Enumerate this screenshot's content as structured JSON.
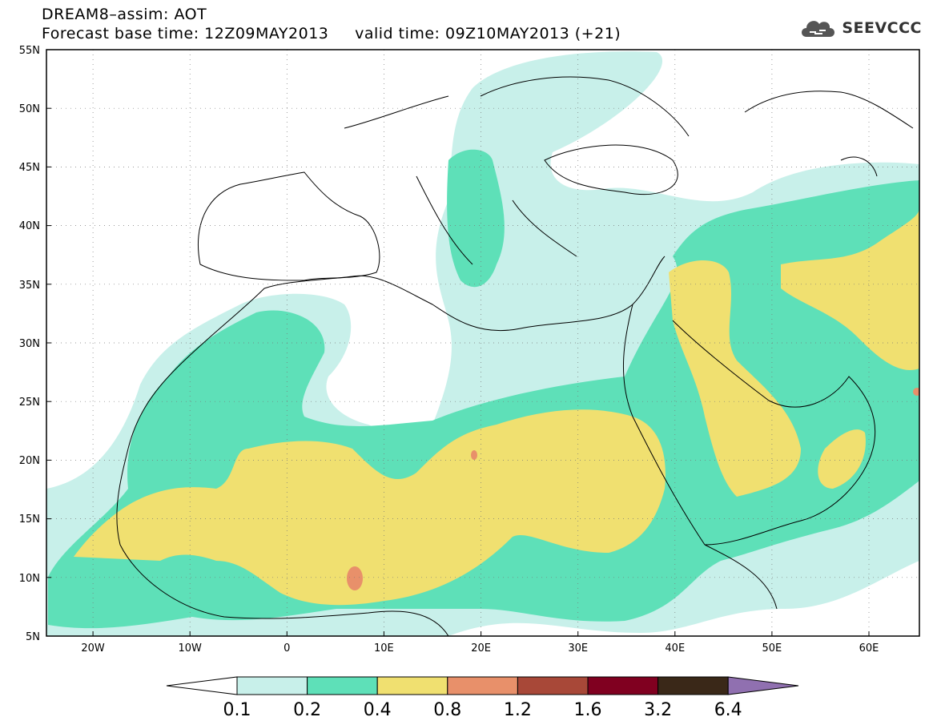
{
  "title": {
    "line1": "DREAM8–assim: AOT",
    "line2": "Forecast base time: 12Z09MAY2013     valid time: 09Z10MAY2013 (+21)"
  },
  "logo": {
    "text": "SEEVCCC",
    "icon": "cloud-icon"
  },
  "map": {
    "variable": "AOT",
    "lat_labels": [
      "55N",
      "50N",
      "45N",
      "40N",
      "35N",
      "30N",
      "25N",
      "20N",
      "15N",
      "10N",
      "5N"
    ],
    "lon_labels": [
      "20W",
      "10W",
      "0",
      "10E",
      "20E",
      "30E",
      "40E",
      "50E",
      "60E"
    ],
    "regions": [
      {
        "level": "0.1-0.2",
        "color": "#c8f0ea"
      },
      {
        "level": "0.2-0.4",
        "color": "#5ee0b8"
      },
      {
        "level": "0.4-0.8",
        "color": "#f0e070"
      },
      {
        "level": "0.8-1.2",
        "color": "#e8906a"
      }
    ]
  },
  "colorbar": {
    "labels": [
      "0.1",
      "0.2",
      "0.4",
      "0.8",
      "1.2",
      "1.6",
      "3.2",
      "6.4"
    ],
    "colors": [
      "#ffffff",
      "#c8f0ea",
      "#5ee0b8",
      "#f0e070",
      "#e8906a",
      "#a84838",
      "#800020",
      "#3a2818",
      "#9070b0"
    ]
  }
}
